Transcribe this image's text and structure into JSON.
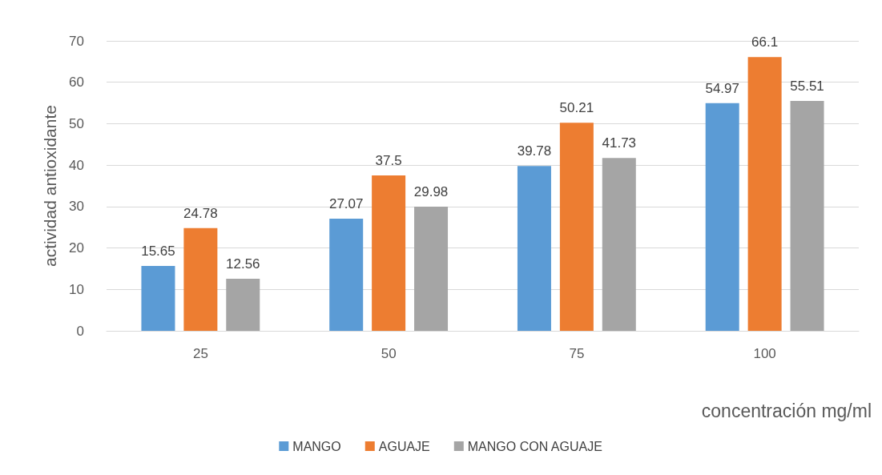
{
  "chart_data": {
    "type": "bar",
    "xlabel": "concentración mg/ml",
    "ylabel": "actividad antioxidante",
    "categories": [
      "25",
      "50",
      "75",
      "100"
    ],
    "series": [
      {
        "name": "MANGO",
        "color": "#5b9bd5",
        "values": [
          15.65,
          27.07,
          39.78,
          54.97
        ]
      },
      {
        "name": "AGUAJE",
        "color": "#ed7d31",
        "values": [
          24.78,
          37.5,
          50.21,
          66.1
        ]
      },
      {
        "name": "MANGO CON AGUAJE",
        "color": "#a5a5a5",
        "values": [
          12.56,
          29.98,
          41.73,
          55.51
        ]
      }
    ],
    "ylim": [
      0,
      70
    ],
    "yticks": [
      0,
      10,
      20,
      30,
      40,
      50,
      60,
      70
    ],
    "grid": "y",
    "legend": "bottom",
    "data_labels": true
  }
}
